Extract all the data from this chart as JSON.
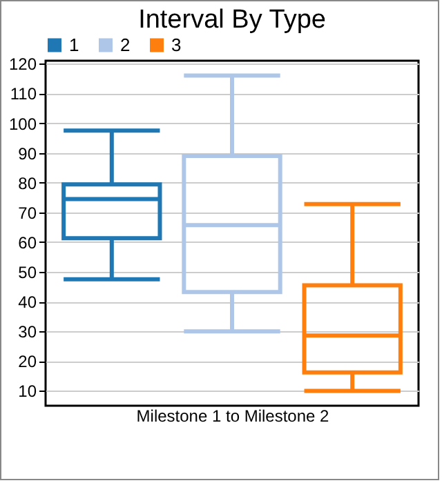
{
  "chart_data": {
    "type": "box",
    "title": "Interval By Type",
    "categories": [
      "Milestone 1 to Milestone 2"
    ],
    "series": [
      {
        "name": "1",
        "color": "#1f77b4",
        "boxes": [
          {
            "low": 47.5,
            "q1": 61.3,
            "median": 74.5,
            "q3": 79.4,
            "high": 97.5
          }
        ]
      },
      {
        "name": "2",
        "color": "#aec7e8",
        "boxes": [
          {
            "low": 30,
            "q1": 43.2,
            "median": 65.7,
            "q3": 89,
            "high": 116
          }
        ]
      },
      {
        "name": "3",
        "color": "#ff7f0e",
        "boxes": [
          {
            "low": 10,
            "q1": 16.2,
            "median": 28.6,
            "q3": 45.5,
            "high": 72.8
          }
        ]
      }
    ],
    "ylim": [
      5,
      121
    ],
    "yticks": [
      10,
      20,
      30,
      40,
      50,
      60,
      70,
      80,
      90,
      100,
      110,
      120
    ],
    "grid": "y",
    "legend": "top left"
  }
}
